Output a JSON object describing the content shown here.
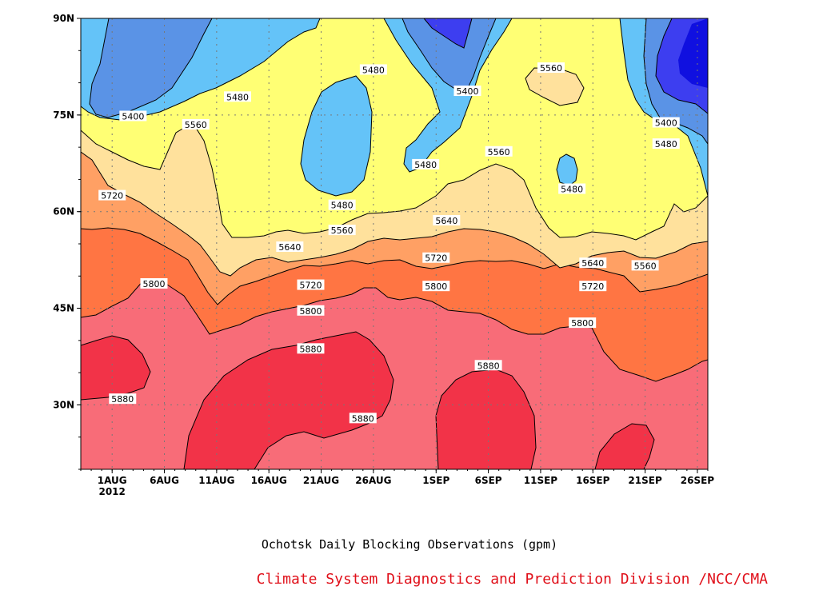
{
  "figure": {
    "caption": "Ochotsk Daily Blocking Observations (gpm)",
    "credit": "Climate System Diagnostics and Prediction Division /NCC/CMA"
  },
  "colors": {
    "below_5400": "#3d3ef0",
    "band_5400_5480": "#5a93e6",
    "band_5480_5560": "#64c3f8",
    "band_5560_5640": "#ffff74",
    "band_5640_5720": "#ffe19c",
    "band_5720_5800": "#ffa064",
    "band_5800_5880": "#ff7543",
    "band_5880_plus_outer": "#f86c78",
    "band_5880_plus_inner": "#f23348",
    "darkest_core": "#1010e0",
    "credit_text": "#e0101a"
  },
  "chart_data": {
    "type": "heatmap",
    "x_axis": {
      "range": [
        "2012-07-29",
        "2012-09-27"
      ],
      "ticks": [
        {
          "date": "2012-08-01",
          "label": "1AUG"
        },
        {
          "date": "2012-08-06",
          "label": "6AUG"
        },
        {
          "date": "2012-08-11",
          "label": "11AUG"
        },
        {
          "date": "2012-08-16",
          "label": "16AUG"
        },
        {
          "date": "2012-08-21",
          "label": "21AUG"
        },
        {
          "date": "2012-08-26",
          "label": "26AUG"
        },
        {
          "date": "2012-09-01",
          "label": "1SEP"
        },
        {
          "date": "2012-09-06",
          "label": "6SEP"
        },
        {
          "date": "2012-09-11",
          "label": "11SEP"
        },
        {
          "date": "2012-09-16",
          "label": "16SEP"
        },
        {
          "date": "2012-09-21",
          "label": "21SEP"
        },
        {
          "date": "2012-09-26",
          "label": "26SEP"
        }
      ],
      "year_label": "2012"
    },
    "y_axis": {
      "range": [
        20,
        90
      ],
      "ticks": [
        {
          "value": 30,
          "label": "30N"
        },
        {
          "value": 45,
          "label": "45N"
        },
        {
          "value": 60,
          "label": "60N"
        },
        {
          "value": 75,
          "label": "75N"
        },
        {
          "value": 90,
          "label": "90N"
        }
      ]
    },
    "grid": true,
    "contour_levels": [
      5400,
      5480,
      5560,
      5640,
      5720,
      5800,
      5880
    ],
    "contour_labels": [
      {
        "text": "5400",
        "date": "2012-08-03",
        "lat": 74.8
      },
      {
        "text": "5480",
        "date": "2012-08-13",
        "lat": 77.8
      },
      {
        "text": "5560",
        "date": "2012-08-09",
        "lat": 73.5
      },
      {
        "text": "5480",
        "date": "2012-08-26",
        "lat": 82.0
      },
      {
        "text": "5400",
        "date": "2012-09-04",
        "lat": 78.7
      },
      {
        "text": "5560",
        "date": "2012-09-12",
        "lat": 82.3
      },
      {
        "text": "5400",
        "date": "2012-09-23",
        "lat": 73.8
      },
      {
        "text": "5480",
        "date": "2012-09-23",
        "lat": 70.5
      },
      {
        "text": "5480",
        "date": "2012-08-31",
        "lat": 67.3
      },
      {
        "text": "5560",
        "date": "2012-09-07",
        "lat": 69.3
      },
      {
        "text": "5480",
        "date": "2012-09-14",
        "lat": 63.5
      },
      {
        "text": "5720",
        "date": "2012-08-01",
        "lat": 62.5
      },
      {
        "text": "5480",
        "date": "2012-08-23",
        "lat": 61.0
      },
      {
        "text": "5560",
        "date": "2012-08-23",
        "lat": 57.1
      },
      {
        "text": "5640",
        "date": "2012-09-02",
        "lat": 58.6
      },
      {
        "text": "5640",
        "date": "2012-08-18",
        "lat": 54.5
      },
      {
        "text": "5720",
        "date": "2012-09-01",
        "lat": 52.8
      },
      {
        "text": "5640",
        "date": "2012-09-16",
        "lat": 52.0
      },
      {
        "text": "5560",
        "date": "2012-09-21",
        "lat": 51.6
      },
      {
        "text": "5800",
        "date": "2012-08-05",
        "lat": 48.8
      },
      {
        "text": "5720",
        "date": "2012-08-20",
        "lat": 48.6
      },
      {
        "text": "5800",
        "date": "2012-09-01",
        "lat": 48.4
      },
      {
        "text": "5720",
        "date": "2012-09-16",
        "lat": 48.4
      },
      {
        "text": "5800",
        "date": "2012-08-20",
        "lat": 44.6
      },
      {
        "text": "5800",
        "date": "2012-09-15",
        "lat": 42.7
      },
      {
        "text": "5880",
        "date": "2012-08-20",
        "lat": 38.7
      },
      {
        "text": "5880",
        "date": "2012-09-06",
        "lat": 36.1
      },
      {
        "text": "5880",
        "date": "2012-08-02",
        "lat": 30.9
      },
      {
        "text": "5880",
        "date": "2012-08-25",
        "lat": 27.9
      }
    ]
  }
}
